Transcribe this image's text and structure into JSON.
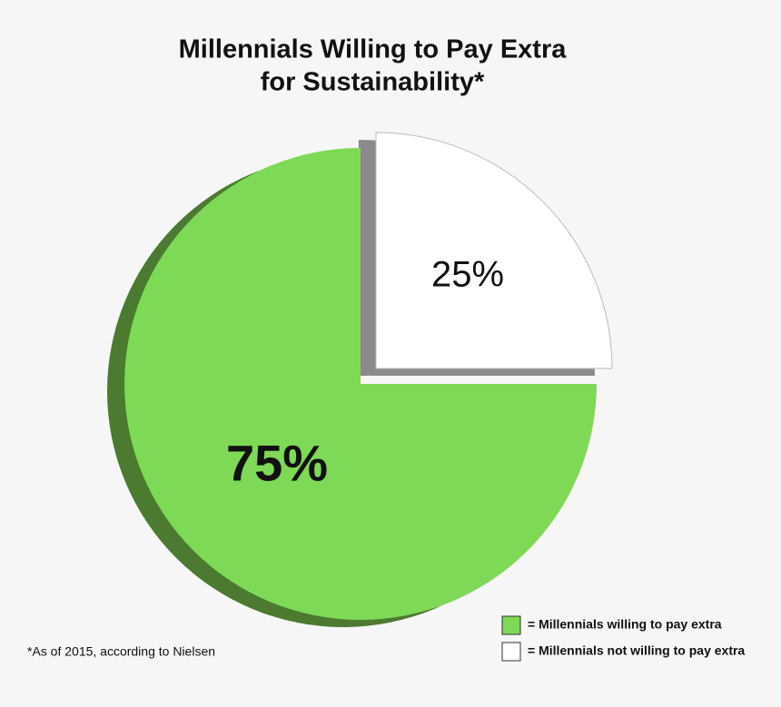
{
  "chart_data": {
    "type": "pie",
    "title": [
      "Millennials Willing to Pay Extra",
      "for Sustainability*"
    ],
    "categories": [
      "= Millennials willing to pay extra",
      "= Millennials not willing to pay extra"
    ],
    "values": [
      75,
      25
    ],
    "value_labels": [
      "75%",
      "25%"
    ],
    "colors": [
      "#7ed957",
      "#ffffff"
    ],
    "startangle": 90,
    "exploded": [
      false,
      true
    ],
    "footnote": "*As of 2015, according to Nielsen"
  }
}
